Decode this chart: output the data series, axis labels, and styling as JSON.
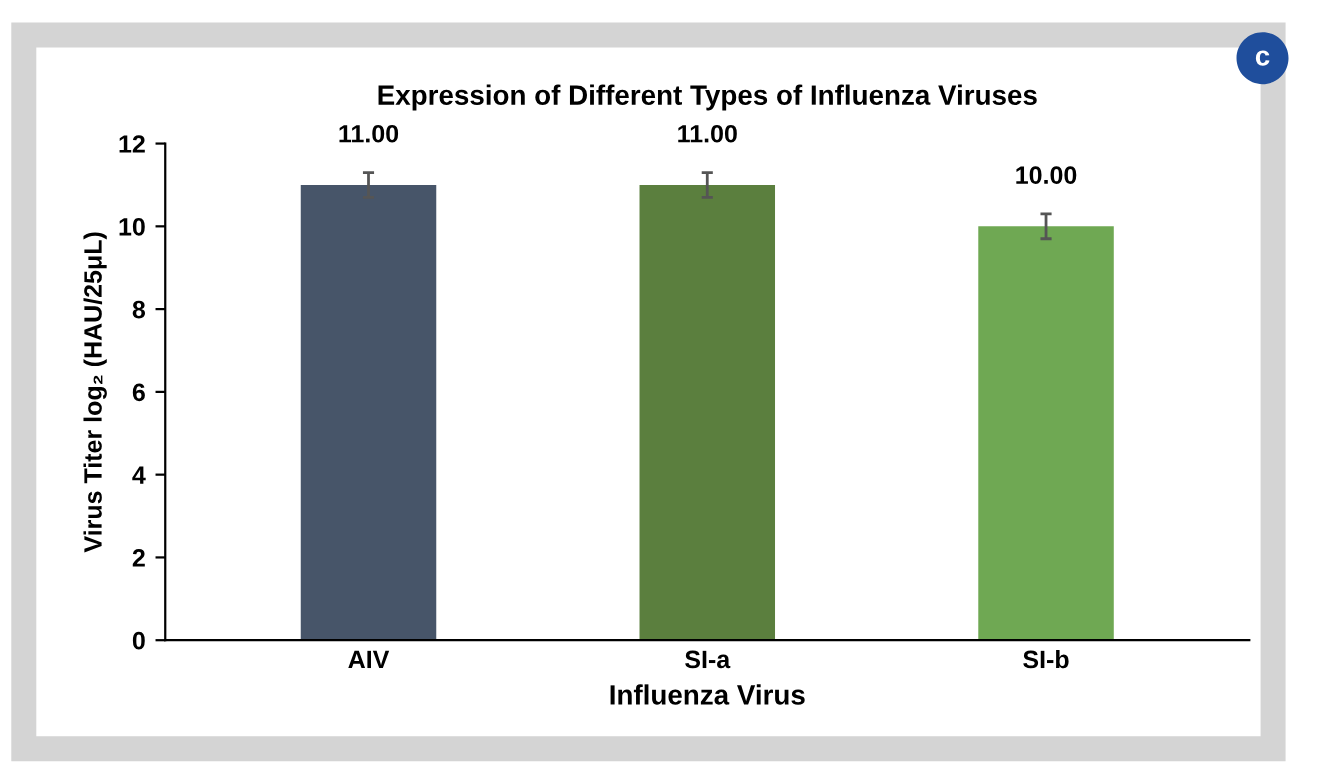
{
  "chart_data": {
    "type": "bar",
    "title": "Expression of Different Types of Influenza Viruses",
    "xlabel": "Influenza Virus",
    "ylabel": "Virus Titer log₂ (HAU/25μL)",
    "categories": [
      "AIV",
      "SI-a",
      "SI-b"
    ],
    "values": [
      11.0,
      11.0,
      10.0
    ],
    "colors": [
      "#475569",
      "#5b7f3e",
      "#6fa853"
    ],
    "errors": [
      0.3,
      0.3,
      0.3
    ],
    "value_labels": [
      "11.00",
      "11.00",
      "10.00"
    ],
    "ylim": [
      0,
      12
    ],
    "yticks": [
      0,
      2,
      4,
      6,
      8,
      10,
      12
    ],
    "annotations": [
      "c"
    ]
  }
}
